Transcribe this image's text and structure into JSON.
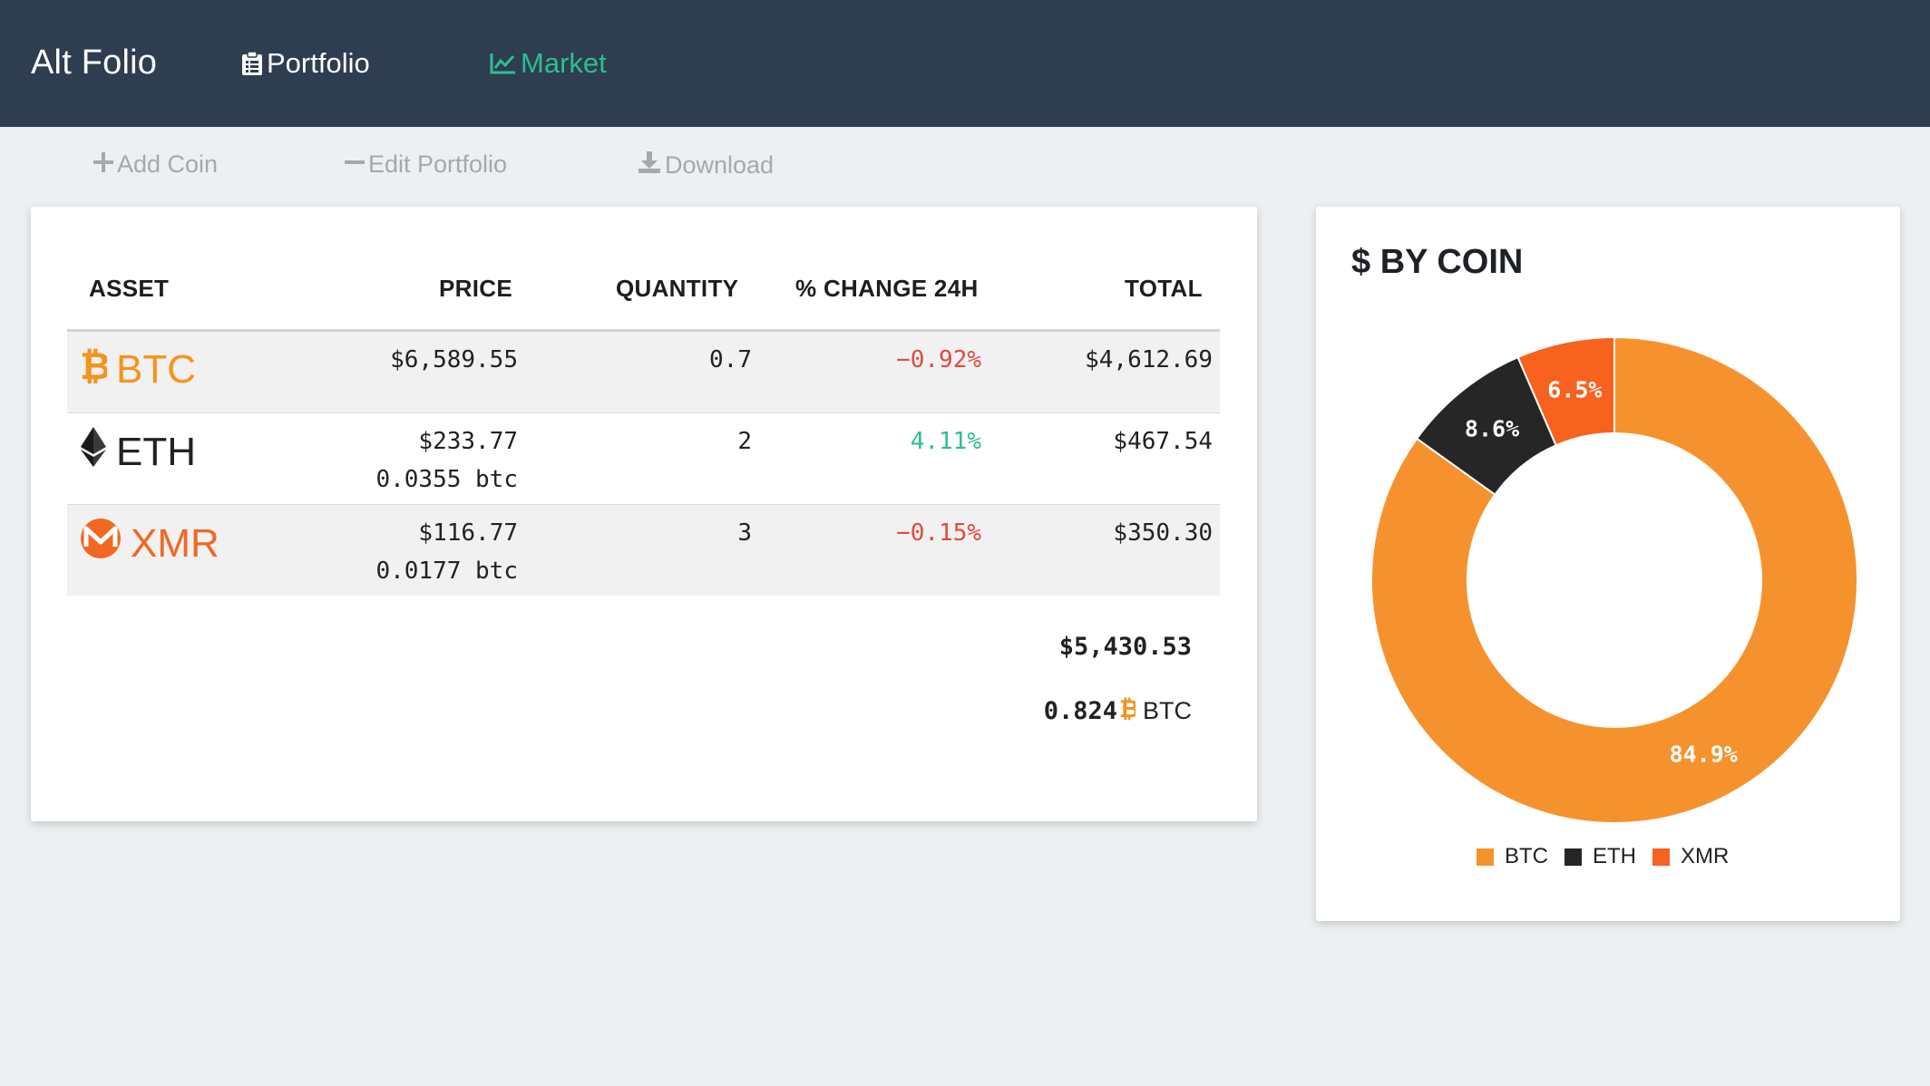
{
  "header": {
    "brand": "Alt Folio",
    "nav": [
      {
        "label": "Portfolio",
        "icon": "clipboard-icon",
        "color": "#ffffff"
      },
      {
        "label": "Market",
        "icon": "line-chart-icon",
        "color": "#2dbd96"
      }
    ]
  },
  "toolbar": {
    "add_label": "Add Coin",
    "edit_label": "Edit Portfolio",
    "download_label": "Download"
  },
  "table": {
    "headers": [
      "ASSET",
      "PRICE",
      "QUANTITY",
      "% CHANGE 24H",
      "TOTAL"
    ],
    "rows": [
      {
        "symbol": "BTC",
        "icon": "bitcoin-icon",
        "color": "#f7931a",
        "price": "$6,589.55",
        "price_btc": "",
        "quantity": "0.7",
        "change": "−0.92%",
        "change_dir": "neg",
        "total": "$4,612.69"
      },
      {
        "symbol": "ETH",
        "icon": "ethereum-icon",
        "color": "#222222",
        "price": "$233.77",
        "price_btc": "0.0355 btc",
        "quantity": "2",
        "change": "4.11%",
        "change_dir": "pos",
        "total": "$467.54"
      },
      {
        "symbol": "XMR",
        "icon": "monero-icon",
        "color": "#f26822",
        "price": "$116.77",
        "price_btc": "0.0177 btc",
        "quantity": "3",
        "change": "−0.15%",
        "change_dir": "neg",
        "total": "$350.30"
      }
    ],
    "summary": {
      "total_usd": "$5,430.53",
      "total_btc": "0.824",
      "total_btc_unit": "BTC"
    }
  },
  "chart": {
    "title": "$ BY COIN"
  },
  "chart_data": {
    "type": "pie",
    "donut": true,
    "title": "$ BY COIN",
    "categories": [
      "BTC",
      "ETH",
      "XMR"
    ],
    "values": [
      84.9,
      8.6,
      6.5
    ],
    "labels": [
      "84.9%",
      "8.6%",
      "6.5%"
    ],
    "colors": [
      "#f6922e",
      "#262626",
      "#f7621f"
    ],
    "legend": "bottom"
  }
}
